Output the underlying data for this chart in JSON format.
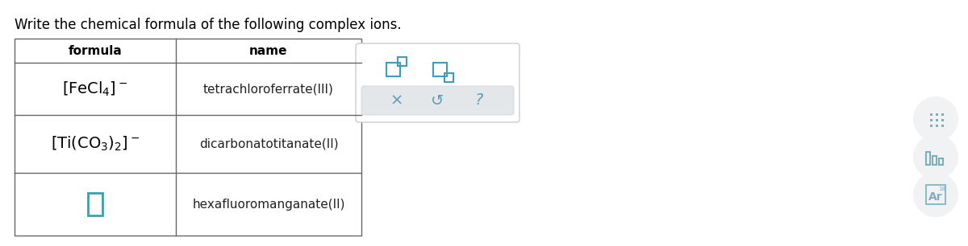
{
  "title": "Write the chemical formula of the following complex ions.",
  "title_fontsize": 12,
  "col1_header": "formula",
  "col2_header": "name",
  "rows": [
    {
      "formula": "FeCl4_minus",
      "name": "tetrachloroferrate(III)"
    },
    {
      "formula": "Ti_CO3_2_minus",
      "name": "dicarbonatotitanate(II)"
    },
    {
      "formula": "empty_blue_box",
      "name": "hexafluoromanganate(II)"
    }
  ],
  "bg_color": "#ffffff",
  "table_border_color": "#666666",
  "header_font_color": "#000000",
  "name_font_color": "#222222",
  "formula_font_color": "#000000",
  "blue_color": "#3d9db5",
  "teal_color": "#5b9db5",
  "popup_bg": "#e4e7ea",
  "popup_border": "#c8cdd2",
  "right_icon_color": "#7aafc0",
  "right_circle_color": "#f0f2f4"
}
